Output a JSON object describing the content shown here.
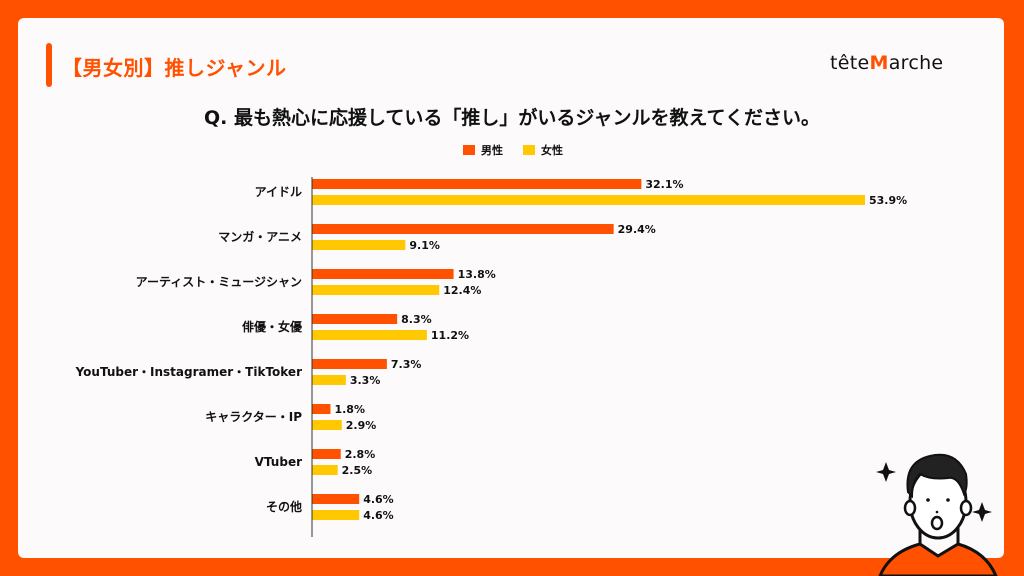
{
  "header": {
    "title": "【男女別】推しジャンル",
    "logo": "têteMarche",
    "question": "Q. 最も熱心に応援している「推し」がいるジャンルを教えてください。"
  },
  "colors": {
    "background": "#ff5100",
    "male": "#ff5100",
    "female": "#ffc800"
  },
  "chart_data": {
    "type": "bar",
    "orientation": "horizontal",
    "title": "Q. 最も熱心に応援している「推し」がいるジャンルを教えてください。",
    "legend": [
      "男性",
      "女性"
    ],
    "legend_position": "top-center",
    "categories": [
      "アイドル",
      "マンガ・アニメ",
      "アーティスト・ミュージシャン",
      "俳優・女優",
      "YouTuber・Instagramer・TikToker",
      "キャラクター・IP",
      "VTuber",
      "その他"
    ],
    "series": [
      {
        "name": "男性",
        "color": "#ff5100",
        "values": [
          32.1,
          29.4,
          13.8,
          8.3,
          7.3,
          1.8,
          2.8,
          4.6
        ]
      },
      {
        "name": "女性",
        "color": "#ffc800",
        "values": [
          53.9,
          9.1,
          12.4,
          11.2,
          3.3,
          2.9,
          2.5,
          4.6
        ]
      }
    ],
    "value_suffix": "%",
    "xlim": [
      0,
      60
    ],
    "grid": false
  }
}
